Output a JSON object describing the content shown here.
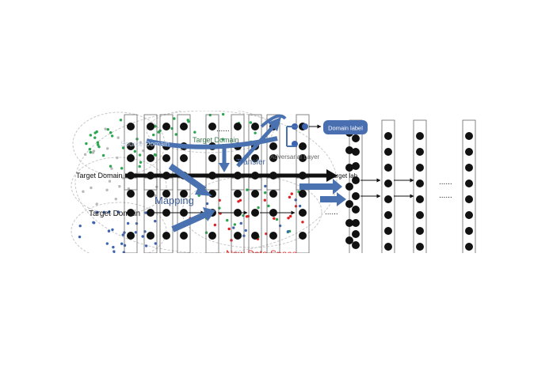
{
  "labels": {
    "source_domain": "Source Domain",
    "target_domain_top": "Target Domain",
    "target_domain_mid": "Target Domain",
    "target_domain_bottom": "Target Domain",
    "transfer": "Transfer",
    "adversarial_layer": "Adversarial Layer",
    "domain_label": "Domain label",
    "target_label": "Target lab",
    "mapping": "Mapping",
    "new_data_space": "New Data Space",
    "ellipsis": "......"
  },
  "colors": {
    "arrow_blue": "#4a72b0",
    "node": "#111111",
    "green": "#2aa650",
    "blue": "#3c64b0",
    "red": "#e02020",
    "gray": "#b8b8b8",
    "red_text": "#e03030",
    "domain_label_bg": "#4a6fb0"
  }
}
